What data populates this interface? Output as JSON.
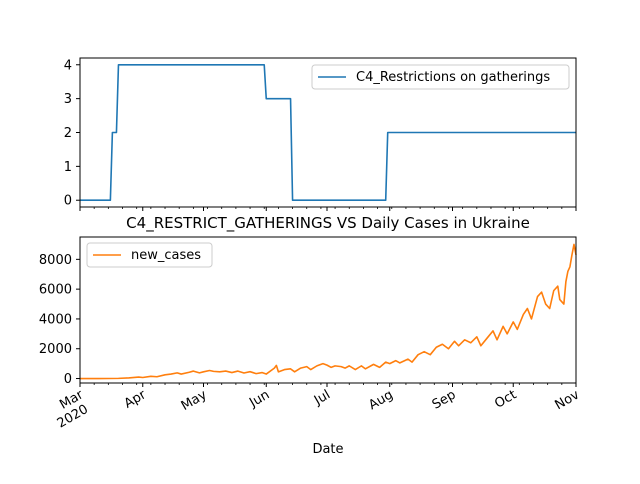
{
  "chart_data": [
    {
      "type": "line",
      "title": "",
      "xlabel": "",
      "ylabel": "",
      "x_range": [
        "2020-03-01",
        "2020-11-01"
      ],
      "ylim": [
        -0.2,
        4.2
      ],
      "yticks": [
        0,
        1,
        2,
        3,
        4
      ],
      "legend": "upper-right",
      "series": [
        {
          "name": "C4_Restrictions on gatherings",
          "color": "#1f77b4",
          "step_points": [
            [
              "2020-03-01",
              0
            ],
            [
              "2020-03-16",
              0
            ],
            [
              "2020-03-17",
              2
            ],
            [
              "2020-03-19",
              2
            ],
            [
              "2020-03-20",
              4
            ],
            [
              "2020-05-31",
              4
            ],
            [
              "2020-06-01",
              3
            ],
            [
              "2020-06-13",
              3
            ],
            [
              "2020-06-14",
              0
            ],
            [
              "2020-07-30",
              0
            ],
            [
              "2020-07-31",
              2
            ],
            [
              "2020-11-01",
              2
            ]
          ]
        }
      ]
    },
    {
      "type": "line",
      "title": "C4_RESTRICT_GATHERINGS VS Daily Cases in Ukraine",
      "xlabel": "Date",
      "ylabel": "",
      "x_range": [
        "2020-03-01",
        "2020-11-01"
      ],
      "ylim": [
        -300,
        9500
      ],
      "yticks": [
        0,
        2000,
        4000,
        6000,
        8000
      ],
      "xticks": [
        {
          "date": "2020-03-01",
          "label": "Mar",
          "sublabel": "2020"
        },
        {
          "date": "2020-04-01",
          "label": "Apr"
        },
        {
          "date": "2020-05-01",
          "label": "May"
        },
        {
          "date": "2020-06-01",
          "label": "Jun"
        },
        {
          "date": "2020-07-01",
          "label": "Jul"
        },
        {
          "date": "2020-08-01",
          "label": "Aug"
        },
        {
          "date": "2020-09-01",
          "label": "Sep"
        },
        {
          "date": "2020-10-01",
          "label": "Oct"
        },
        {
          "date": "2020-11-01",
          "label": "Nov"
        }
      ],
      "legend": "upper-left",
      "series": [
        {
          "name": "new_cases",
          "color": "#ff7f0e",
          "points": [
            [
              "2020-03-01",
              0
            ],
            [
              "2020-03-10",
              0
            ],
            [
              "2020-03-20",
              10
            ],
            [
              "2020-03-25",
              40
            ],
            [
              "2020-03-30",
              100
            ],
            [
              "2020-04-01",
              70
            ],
            [
              "2020-04-05",
              150
            ],
            [
              "2020-04-08",
              120
            ],
            [
              "2020-04-12",
              250
            ],
            [
              "2020-04-15",
              300
            ],
            [
              "2020-04-18",
              380
            ],
            [
              "2020-04-20",
              300
            ],
            [
              "2020-04-24",
              420
            ],
            [
              "2020-04-26",
              500
            ],
            [
              "2020-04-29",
              380
            ],
            [
              "2020-05-01",
              450
            ],
            [
              "2020-05-04",
              540
            ],
            [
              "2020-05-06",
              480
            ],
            [
              "2020-05-09",
              450
            ],
            [
              "2020-05-12",
              500
            ],
            [
              "2020-05-15",
              400
            ],
            [
              "2020-05-18",
              500
            ],
            [
              "2020-05-21",
              370
            ],
            [
              "2020-05-24",
              460
            ],
            [
              "2020-05-27",
              330
            ],
            [
              "2020-05-30",
              400
            ],
            [
              "2020-06-01",
              300
            ],
            [
              "2020-06-05",
              700
            ],
            [
              "2020-06-06",
              880
            ],
            [
              "2020-06-07",
              450
            ],
            [
              "2020-06-10",
              600
            ],
            [
              "2020-06-13",
              650
            ],
            [
              "2020-06-15",
              450
            ],
            [
              "2020-06-18",
              700
            ],
            [
              "2020-06-21",
              800
            ],
            [
              "2020-06-23",
              600
            ],
            [
              "2020-06-26",
              850
            ],
            [
              "2020-06-29",
              1000
            ],
            [
              "2020-07-01",
              900
            ],
            [
              "2020-07-03",
              750
            ],
            [
              "2020-07-05",
              850
            ],
            [
              "2020-07-08",
              800
            ],
            [
              "2020-07-10",
              700
            ],
            [
              "2020-07-12",
              850
            ],
            [
              "2020-07-15",
              600
            ],
            [
              "2020-07-18",
              850
            ],
            [
              "2020-07-20",
              650
            ],
            [
              "2020-07-24",
              950
            ],
            [
              "2020-07-27",
              750
            ],
            [
              "2020-07-30",
              1100
            ],
            [
              "2020-08-01",
              1000
            ],
            [
              "2020-08-04",
              1200
            ],
            [
              "2020-08-06",
              1050
            ],
            [
              "2020-08-10",
              1300
            ],
            [
              "2020-08-12",
              1100
            ],
            [
              "2020-08-15",
              1600
            ],
            [
              "2020-08-18",
              1800
            ],
            [
              "2020-08-21",
              1600
            ],
            [
              "2020-08-24",
              2100
            ],
            [
              "2020-08-27",
              2300
            ],
            [
              "2020-08-30",
              2000
            ],
            [
              "2020-09-02",
              2500
            ],
            [
              "2020-09-04",
              2200
            ],
            [
              "2020-09-07",
              2600
            ],
            [
              "2020-09-10",
              2400
            ],
            [
              "2020-09-13",
              2800
            ],
            [
              "2020-09-15",
              2200
            ],
            [
              "2020-09-18",
              2700
            ],
            [
              "2020-09-21",
              3200
            ],
            [
              "2020-09-23",
              2600
            ],
            [
              "2020-09-26",
              3500
            ],
            [
              "2020-09-28",
              3000
            ],
            [
              "2020-10-01",
              3800
            ],
            [
              "2020-10-03",
              3300
            ],
            [
              "2020-10-06",
              4300
            ],
            [
              "2020-10-08",
              4700
            ],
            [
              "2020-10-10",
              4000
            ],
            [
              "2020-10-13",
              5500
            ],
            [
              "2020-10-15",
              5800
            ],
            [
              "2020-10-17",
              5000
            ],
            [
              "2020-10-19",
              4700
            ],
            [
              "2020-10-21",
              5900
            ],
            [
              "2020-10-23",
              6200
            ],
            [
              "2020-10-24",
              5300
            ],
            [
              "2020-10-26",
              5000
            ],
            [
              "2020-10-27",
              6500
            ],
            [
              "2020-10-28",
              7200
            ],
            [
              "2020-10-29",
              7500
            ],
            [
              "2020-10-30",
              8300
            ],
            [
              "2020-10-31",
              9000
            ],
            [
              "2020-11-01",
              8300
            ]
          ]
        }
      ]
    }
  ]
}
